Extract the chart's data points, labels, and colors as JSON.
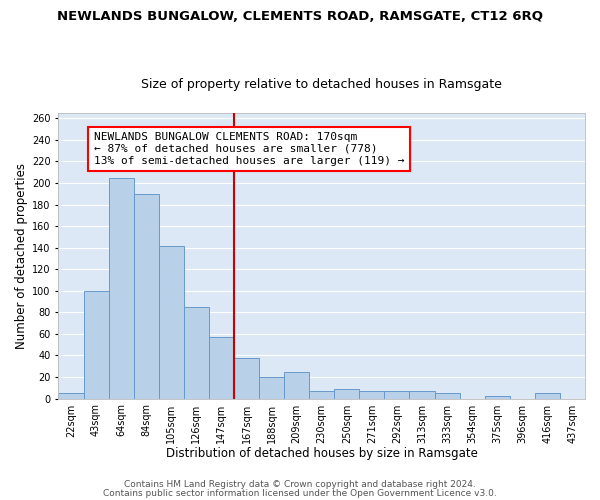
{
  "title": "NEWLANDS BUNGALOW, CLEMENTS ROAD, RAMSGATE, CT12 6RQ",
  "subtitle": "Size of property relative to detached houses in Ramsgate",
  "xlabel": "Distribution of detached houses by size in Ramsgate",
  "ylabel": "Number of detached properties",
  "bar_color": "#b8d0e8",
  "bar_edge_color": "#6699cc",
  "background_color": "#dce8f5",
  "grid_color": "#ffffff",
  "bin_labels": [
    "22sqm",
    "43sqm",
    "64sqm",
    "84sqm",
    "105sqm",
    "126sqm",
    "147sqm",
    "167sqm",
    "188sqm",
    "209sqm",
    "230sqm",
    "250sqm",
    "271sqm",
    "292sqm",
    "313sqm",
    "333sqm",
    "354sqm",
    "375sqm",
    "396sqm",
    "416sqm",
    "437sqm"
  ],
  "bar_heights": [
    5,
    100,
    205,
    190,
    142,
    85,
    57,
    38,
    20,
    25,
    7,
    9,
    7,
    7,
    7,
    5,
    0,
    2,
    0,
    5,
    0
  ],
  "vline_color": "#cc0000",
  "annotation_line1": "NEWLANDS BUNGALOW CLEMENTS ROAD: 170sqm",
  "annotation_line2": "← 87% of detached houses are smaller (778)",
  "annotation_line3": "13% of semi-detached houses are larger (119) →",
  "ylim": [
    0,
    265
  ],
  "yticks": [
    0,
    20,
    40,
    60,
    80,
    100,
    120,
    140,
    160,
    180,
    200,
    220,
    240,
    260
  ],
  "footer_line1": "Contains HM Land Registry data © Crown copyright and database right 2024.",
  "footer_line2": "Contains public sector information licensed under the Open Government Licence v3.0.",
  "title_fontsize": 9.5,
  "subtitle_fontsize": 9,
  "xlabel_fontsize": 8.5,
  "ylabel_fontsize": 8.5,
  "tick_fontsize": 7,
  "footer_fontsize": 6.5,
  "annotation_fontsize": 8
}
